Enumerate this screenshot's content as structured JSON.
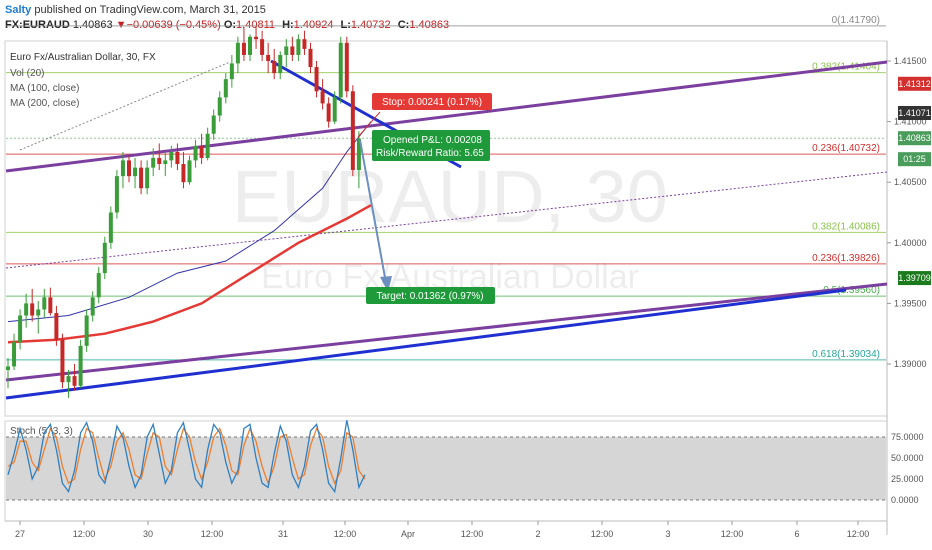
{
  "header": {
    "author": "Salty",
    "published": "published on TradingView.com, March 31, 2015",
    "symbol": "FX:EURAUD",
    "last": "1.40863",
    "arrow": "▼",
    "change": "−0.00639 (−0.45%)",
    "o_label": "O:",
    "o": "1.40811",
    "h_label": "H:",
    "h": "1.40924",
    "l_label": "L:",
    "l": "1.40732",
    "c_label": "C:",
    "c": "1.40863"
  },
  "legend": {
    "series": "Euro Fx/Australian Dollar, 30, FX",
    "vol": "Vol (20)",
    "ma100": "MA (100, close)",
    "ma200": "MA (200, close)"
  },
  "watermark": {
    "symbol": "EURAUD, 30",
    "name": "Euro Fx/Australian Dollar"
  },
  "colors": {
    "up": "#3a9d3a",
    "down": "#c62828",
    "ma100": "#3333aa",
    "ma200": "#e53935",
    "purple": "#7b3fa0",
    "blue": "#1f2fd0",
    "stoch_k": "#2f7fc1",
    "stoch_d": "#ee7f2e"
  },
  "chart_data": {
    "type": "candlestick",
    "y_axis": {
      "min": 1.385,
      "max": 1.42,
      "ticks": [
        "1.41500",
        "1.41000",
        "1.40500",
        "1.40000",
        "1.39500",
        "1.39000"
      ]
    },
    "x_axis": {
      "ticks": [
        "27",
        "12:00",
        "30",
        "12:00",
        "31",
        "12:00",
        "Apr",
        "12:00",
        "2",
        "12:00",
        "3",
        "12:00",
        "6",
        "12:00"
      ]
    },
    "candles": [
      [
        1.3895,
        1.3905,
        1.388,
        1.3898
      ],
      [
        1.3898,
        1.3925,
        1.3895,
        1.3918
      ],
      [
        1.3918,
        1.3945,
        1.3912,
        1.394
      ],
      [
        1.394,
        1.3958,
        1.393,
        1.395
      ],
      [
        1.395,
        1.3962,
        1.3935,
        1.394
      ],
      [
        1.394,
        1.3952,
        1.3925,
        1.3945
      ],
      [
        1.3945,
        1.3962,
        1.3938,
        1.3955
      ],
      [
        1.3955,
        1.3963,
        1.394,
        1.3942
      ],
      [
        1.3942,
        1.3948,
        1.3915,
        1.392
      ],
      [
        1.392,
        1.3925,
        1.388,
        1.3885
      ],
      [
        1.3885,
        1.3895,
        1.3872,
        1.389
      ],
      [
        1.389,
        1.39,
        1.3878,
        1.3882
      ],
      [
        1.3882,
        1.392,
        1.388,
        1.3915
      ],
      [
        1.3915,
        1.3945,
        1.391,
        1.394
      ],
      [
        1.394,
        1.396,
        1.3935,
        1.3955
      ],
      [
        1.3955,
        1.398,
        1.395,
        1.3975
      ],
      [
        1.3975,
        1.4005,
        1.397,
        1.4
      ],
      [
        1.4,
        1.403,
        1.3995,
        1.4025
      ],
      [
        1.4025,
        1.406,
        1.402,
        1.4055
      ],
      [
        1.4055,
        1.4075,
        1.4045,
        1.4068
      ],
      [
        1.4068,
        1.4072,
        1.405,
        1.4055
      ],
      [
        1.4055,
        1.407,
        1.4045,
        1.4062
      ],
      [
        1.4062,
        1.4068,
        1.404,
        1.4045
      ],
      [
        1.4045,
        1.4068,
        1.404,
        1.4062
      ],
      [
        1.4062,
        1.4078,
        1.4055,
        1.407
      ],
      [
        1.407,
        1.4082,
        1.406,
        1.4065
      ],
      [
        1.4065,
        1.4075,
        1.4055,
        1.4068
      ],
      [
        1.4068,
        1.408,
        1.4062,
        1.4075
      ],
      [
        1.4075,
        1.4082,
        1.406,
        1.4065
      ],
      [
        1.4065,
        1.4075,
        1.4045,
        1.405
      ],
      [
        1.405,
        1.4072,
        1.4048,
        1.4068
      ],
      [
        1.4068,
        1.4085,
        1.4062,
        1.408
      ],
      [
        1.408,
        1.409,
        1.4065,
        1.407
      ],
      [
        1.407,
        1.4095,
        1.4068,
        1.409
      ],
      [
        1.409,
        1.411,
        1.4085,
        1.4105
      ],
      [
        1.4105,
        1.4125,
        1.41,
        1.412
      ],
      [
        1.412,
        1.414,
        1.4115,
        1.4135
      ],
      [
        1.4135,
        1.4155,
        1.4128,
        1.4148
      ],
      [
        1.4148,
        1.417,
        1.414,
        1.4165
      ],
      [
        1.4165,
        1.4178,
        1.415,
        1.4155
      ],
      [
        1.4155,
        1.4172,
        1.415,
        1.417
      ],
      [
        1.417,
        1.4179,
        1.416,
        1.4168
      ],
      [
        1.4168,
        1.4175,
        1.415,
        1.4155
      ],
      [
        1.4155,
        1.4165,
        1.414,
        1.415
      ],
      [
        1.415,
        1.416,
        1.4135,
        1.414
      ],
      [
        1.414,
        1.4158,
        1.4135,
        1.4155
      ],
      [
        1.4155,
        1.4168,
        1.4145,
        1.4162
      ],
      [
        1.4162,
        1.417,
        1.415,
        1.4155
      ],
      [
        1.4155,
        1.4172,
        1.415,
        1.4168
      ],
      [
        1.4168,
        1.4175,
        1.4155,
        1.416
      ],
      [
        1.416,
        1.4165,
        1.414,
        1.4145
      ],
      [
        1.4145,
        1.415,
        1.412,
        1.4125
      ],
      [
        1.4125,
        1.4135,
        1.411,
        1.4115
      ],
      [
        1.4115,
        1.412,
        1.4095,
        1.41
      ],
      [
        1.41,
        1.4125,
        1.4098,
        1.412
      ],
      [
        1.412,
        1.417,
        1.4115,
        1.4165
      ],
      [
        1.4165,
        1.417,
        1.412,
        1.4125
      ],
      [
        1.4125,
        1.413,
        1.4055,
        1.406
      ],
      [
        1.406,
        1.4092,
        1.4045,
        1.4086
      ]
    ],
    "ma100": [
      [
        0,
        1.3935
      ],
      [
        10,
        1.394
      ],
      [
        20,
        1.3955
      ],
      [
        28,
        1.3975
      ],
      [
        36,
        1.3985
      ],
      [
        44,
        1.401
      ],
      [
        52,
        1.4045
      ],
      [
        56,
        1.4075
      ],
      [
        60,
        1.41
      ]
    ],
    "ma200": [
      [
        0,
        1.3918
      ],
      [
        8,
        1.392
      ],
      [
        16,
        1.3925
      ],
      [
        24,
        1.3935
      ],
      [
        32,
        1.395
      ],
      [
        40,
        1.3975
      ],
      [
        48,
        1.4
      ],
      [
        56,
        1.402
      ],
      [
        60,
        1.4031
      ]
    ],
    "fib_levels": [
      {
        "label": "0(1.41790)",
        "value": 1.4179,
        "color": "#888888"
      },
      {
        "label": "0.382(1.41404)",
        "value": 1.41404,
        "color": "#8bc34a"
      },
      {
        "label": "0.236(1.40732)",
        "value": 1.40732,
        "color": "#d32f2f"
      },
      {
        "label": "0.382(1.40086)",
        "value": 1.40086,
        "color": "#8bc34a"
      },
      {
        "label": "0.236(1.39826)",
        "value": 1.39826,
        "color": "#d32f2f"
      },
      {
        "label": "0.5(1.39560)",
        "value": 1.3956,
        "color": "#4caf50"
      },
      {
        "label": "0.618(1.39034)",
        "value": 1.39034,
        "color": "#26a69a"
      }
    ],
    "price_tags": [
      {
        "text": "1.41312",
        "value": 1.41312,
        "color": "#d32f2f"
      },
      {
        "text": "1.41071",
        "value": 1.41071,
        "color": "#333333"
      },
      {
        "text": "1.40863",
        "value": 1.40863,
        "color": "#4a9c5a"
      },
      {
        "text": "01:25",
        "value": 1.4069,
        "color": "#4a9c5a"
      },
      {
        "text": "1.39709",
        "value": 1.39709,
        "color": "#1b7a1b"
      }
    ],
    "trade": {
      "stop": "Stop: 0.00241 (0.17%)",
      "opened": "Opened P&L: 0.00208",
      "rr": "Risk/Reward Ratio: 5.65",
      "target": "Target: 0.01362 (0.97%)"
    },
    "stoch": {
      "label": "Stoch (5, 3, 3)",
      "ticks": [
        "75.0000",
        "50.0000",
        "25.0000",
        "0.0000"
      ],
      "k": [
        30,
        55,
        85,
        60,
        25,
        40,
        80,
        90,
        60,
        20,
        10,
        35,
        80,
        92,
        70,
        30,
        20,
        50,
        88,
        75,
        40,
        15,
        30,
        75,
        90,
        55,
        20,
        35,
        80,
        92,
        60,
        25,
        15,
        60,
        90,
        80,
        45,
        20,
        35,
        85,
        90,
        50,
        20,
        15,
        55,
        88,
        70,
        30,
        15,
        40,
        82,
        90,
        60,
        20,
        10,
        50,
        95,
        60,
        15,
        30
      ],
      "d": [
        40,
        45,
        70,
        70,
        45,
        35,
        60,
        85,
        75,
        40,
        20,
        25,
        60,
        85,
        80,
        50,
        25,
        40,
        70,
        80,
        60,
        30,
        25,
        55,
        80,
        75,
        40,
        30,
        60,
        85,
        75,
        45,
        25,
        45,
        75,
        85,
        65,
        35,
        30,
        65,
        85,
        70,
        40,
        20,
        40,
        75,
        78,
        50,
        25,
        30,
        65,
        85,
        75,
        40,
        20,
        35,
        80,
        75,
        35,
        25
      ]
    }
  }
}
